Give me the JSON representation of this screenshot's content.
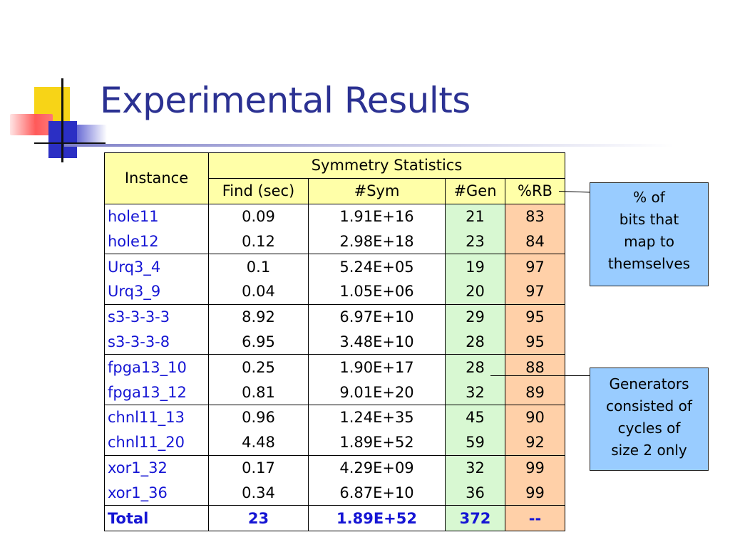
{
  "title": "Experimental Results",
  "table": {
    "header_instance": "Instance",
    "header_group": "Symmetry Statistics",
    "columns": [
      "Find (sec)",
      "#Sym",
      "#Gen",
      "%RB"
    ],
    "rows": [
      {
        "instance": "hole11",
        "find": "0.09",
        "sym": "1.91E+16",
        "gen": "21",
        "rb": "83"
      },
      {
        "instance": "hole12",
        "find": "0.12",
        "sym": "2.98E+18",
        "gen": "23",
        "rb": "84"
      },
      {
        "instance": "Urq3_4",
        "find": "0.1",
        "sym": "5.24E+05",
        "gen": "19",
        "rb": "97"
      },
      {
        "instance": "Urq3_9",
        "find": "0.04",
        "sym": "1.05E+06",
        "gen": "20",
        "rb": "97"
      },
      {
        "instance": "s3-3-3-3",
        "find": "8.92",
        "sym": "6.97E+10",
        "gen": "29",
        "rb": "95"
      },
      {
        "instance": "s3-3-3-8",
        "find": "6.95",
        "sym": "3.48E+10",
        "gen": "28",
        "rb": "95"
      },
      {
        "instance": "fpga13_10",
        "find": "0.25",
        "sym": "1.90E+17",
        "gen": "28",
        "rb": "88"
      },
      {
        "instance": "fpga13_12",
        "find": "0.81",
        "sym": "9.01E+20",
        "gen": "32",
        "rb": "89"
      },
      {
        "instance": "chnl11_13",
        "find": "0.96",
        "sym": "1.24E+35",
        "gen": "45",
        "rb": "90"
      },
      {
        "instance": "chnl11_20",
        "find": "4.48",
        "sym": "1.89E+52",
        "gen": "59",
        "rb": "92"
      },
      {
        "instance": "xor1_32",
        "find": "0.17",
        "sym": "4.29E+09",
        "gen": "32",
        "rb": "99"
      },
      {
        "instance": "xor1_36",
        "find": "0.34",
        "sym": "6.87E+10",
        "gen": "36",
        "rb": "99"
      }
    ],
    "total": {
      "instance": "Total",
      "find": "23",
      "sym": "1.89E+52",
      "gen": "372",
      "rb": "--"
    },
    "colors": {
      "header_bg": "#ffffa8",
      "gen_bg": "#d8f8d2",
      "rb_bg": "#ffd0a8",
      "instance_text": "#1515d4"
    }
  },
  "callouts": {
    "rb_note": [
      "% of",
      "bits that",
      "map to",
      "themselves"
    ],
    "gen_note": [
      "Generators",
      "consisted of",
      "cycles of",
      "size 2 only"
    ],
    "bg_color": "#99ccff"
  },
  "colors": {
    "title": "#2b3192"
  }
}
